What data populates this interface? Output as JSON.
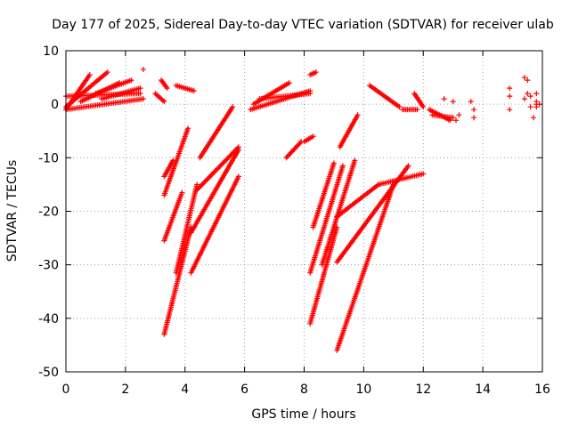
{
  "chart_data": {
    "type": "scatter",
    "title": "Day 177 of 2025, Sidereal Day-to-day VTEC variation (SDTVAR) for receiver ulab",
    "xlabel": "GPS time / hours",
    "ylabel": "SDTVAR / TECUs",
    "xlim": [
      0,
      16
    ],
    "ylim": [
      -50,
      10
    ],
    "xticks": [
      "0",
      "2",
      "4",
      "6",
      "8",
      "10",
      "12",
      "14",
      "16"
    ],
    "yticks": [
      "10",
      "0",
      "-10",
      "-20",
      "-30",
      "-40",
      "-50"
    ],
    "grid": true,
    "legend": "none",
    "marker": "plus",
    "color": "#ff0000",
    "segments": [
      {
        "x0": 0.0,
        "y0": -1.0,
        "x1": 0.8,
        "y1": 5.5
      },
      {
        "x0": 0.0,
        "y0": -0.5,
        "x1": 1.4,
        "y1": 6.0
      },
      {
        "x0": 0.0,
        "y0": 1.5,
        "x1": 2.5,
        "y1": 2.0
      },
      {
        "x0": 0.0,
        "y0": -1.0,
        "x1": 2.6,
        "y1": 1.0
      },
      {
        "x0": 0.5,
        "y0": 0.5,
        "x1": 1.8,
        "y1": 4.0
      },
      {
        "x0": 1.0,
        "y0": 2.0,
        "x1": 2.2,
        "y1": 4.5
      },
      {
        "x0": 1.2,
        "y0": 1.0,
        "x1": 2.5,
        "y1": 3.0
      },
      {
        "x0": 3.0,
        "y0": 2.0,
        "x1": 3.3,
        "y1": 0.5
      },
      {
        "x0": 3.2,
        "y0": 4.5,
        "x1": 3.4,
        "y1": 3.0
      },
      {
        "x0": 3.7,
        "y0": 3.5,
        "x1": 4.3,
        "y1": 2.5
      },
      {
        "x0": 6.2,
        "y0": -1.0,
        "x1": 8.2,
        "y1": 2.5
      },
      {
        "x0": 6.3,
        "y0": 0.0,
        "x1": 7.5,
        "y1": 4.0
      },
      {
        "x0": 6.5,
        "y0": 1.0,
        "x1": 8.2,
        "y1": 2.0
      },
      {
        "x0": 8.2,
        "y0": 5.5,
        "x1": 8.4,
        "y1": 6.0
      },
      {
        "x0": 10.2,
        "y0": 3.5,
        "x1": 11.2,
        "y1": -0.5
      },
      {
        "x0": 11.3,
        "y0": -1.0,
        "x1": 11.8,
        "y1": -1.0
      },
      {
        "x0": 11.7,
        "y0": 2.0,
        "x1": 12.0,
        "y1": -0.5
      },
      {
        "x0": 12.2,
        "y0": -1.0,
        "x1": 12.9,
        "y1": -3.0
      },
      {
        "x0": 12.3,
        "y0": -2.0,
        "x1": 13.0,
        "y1": -2.5
      },
      {
        "x0": 3.3,
        "y0": -13.5,
        "x1": 3.6,
        "y1": -10.5
      },
      {
        "x0": 3.3,
        "y0": -17.0,
        "x1": 4.1,
        "y1": -4.5
      },
      {
        "x0": 3.3,
        "y0": -25.5,
        "x1": 3.9,
        "y1": -16.5
      },
      {
        "x0": 3.3,
        "y0": -43.0,
        "x1": 4.2,
        "y1": -23.0
      },
      {
        "x0": 3.7,
        "y0": -31.5,
        "x1": 4.4,
        "y1": -15.0
      },
      {
        "x0": 4.2,
        "y0": -31.5,
        "x1": 5.8,
        "y1": -13.5
      },
      {
        "x0": 4.2,
        "y0": -24.0,
        "x1": 5.8,
        "y1": -8.5
      },
      {
        "x0": 4.4,
        "y0": -16.0,
        "x1": 5.8,
        "y1": -8.0
      },
      {
        "x0": 4.5,
        "y0": -10.0,
        "x1": 5.6,
        "y1": -0.5
      },
      {
        "x0": 7.4,
        "y0": -10.0,
        "x1": 7.9,
        "y1": -7.0
      },
      {
        "x0": 8.0,
        "y0": -7.0,
        "x1": 8.3,
        "y1": -6.0
      },
      {
        "x0": 8.2,
        "y0": -41.0,
        "x1": 9.1,
        "y1": -23.0
      },
      {
        "x0": 8.2,
        "y0": -31.5,
        "x1": 9.3,
        "y1": -11.5
      },
      {
        "x0": 8.3,
        "y0": -23.0,
        "x1": 9.0,
        "y1": -11.0
      },
      {
        "x0": 8.6,
        "y0": -30.0,
        "x1": 9.7,
        "y1": -10.5
      },
      {
        "x0": 9.1,
        "y0": -29.5,
        "x1": 11.5,
        "y1": -11.5
      },
      {
        "x0": 9.1,
        "y0": -21.0,
        "x1": 10.5,
        "y1": -15.0
      },
      {
        "x0": 10.5,
        "y0": -15.0,
        "x1": 12.0,
        "y1": -13.0
      },
      {
        "x0": 9.1,
        "y0": -46.0,
        "x1": 11.0,
        "y1": -15.0
      },
      {
        "x0": 9.2,
        "y0": -8.0,
        "x1": 9.8,
        "y1": -2.0
      }
    ],
    "scatter_points": [
      {
        "x": 2.6,
        "y": 6.5
      },
      {
        "x": 12.7,
        "y": 1.0
      },
      {
        "x": 13.0,
        "y": 0.5
      },
      {
        "x": 13.1,
        "y": -3.0
      },
      {
        "x": 13.2,
        "y": -2.0
      },
      {
        "x": 13.6,
        "y": 0.5
      },
      {
        "x": 13.7,
        "y": -1.0
      },
      {
        "x": 13.7,
        "y": -2.5
      },
      {
        "x": 14.9,
        "y": 3.0
      },
      {
        "x": 14.9,
        "y": 1.5
      },
      {
        "x": 14.9,
        "y": -1.0
      },
      {
        "x": 15.4,
        "y": 5.0
      },
      {
        "x": 15.5,
        "y": 4.5
      },
      {
        "x": 15.5,
        "y": 2.0
      },
      {
        "x": 15.4,
        "y": 1.0
      },
      {
        "x": 15.6,
        "y": -0.5
      },
      {
        "x": 15.6,
        "y": 1.5
      },
      {
        "x": 15.8,
        "y": 2.0
      },
      {
        "x": 15.8,
        "y": 0.5
      },
      {
        "x": 15.8,
        "y": 0.0
      },
      {
        "x": 15.8,
        "y": -0.5
      },
      {
        "x": 15.7,
        "y": -2.5
      },
      {
        "x": 15.9,
        "y": 0.0
      }
    ]
  }
}
